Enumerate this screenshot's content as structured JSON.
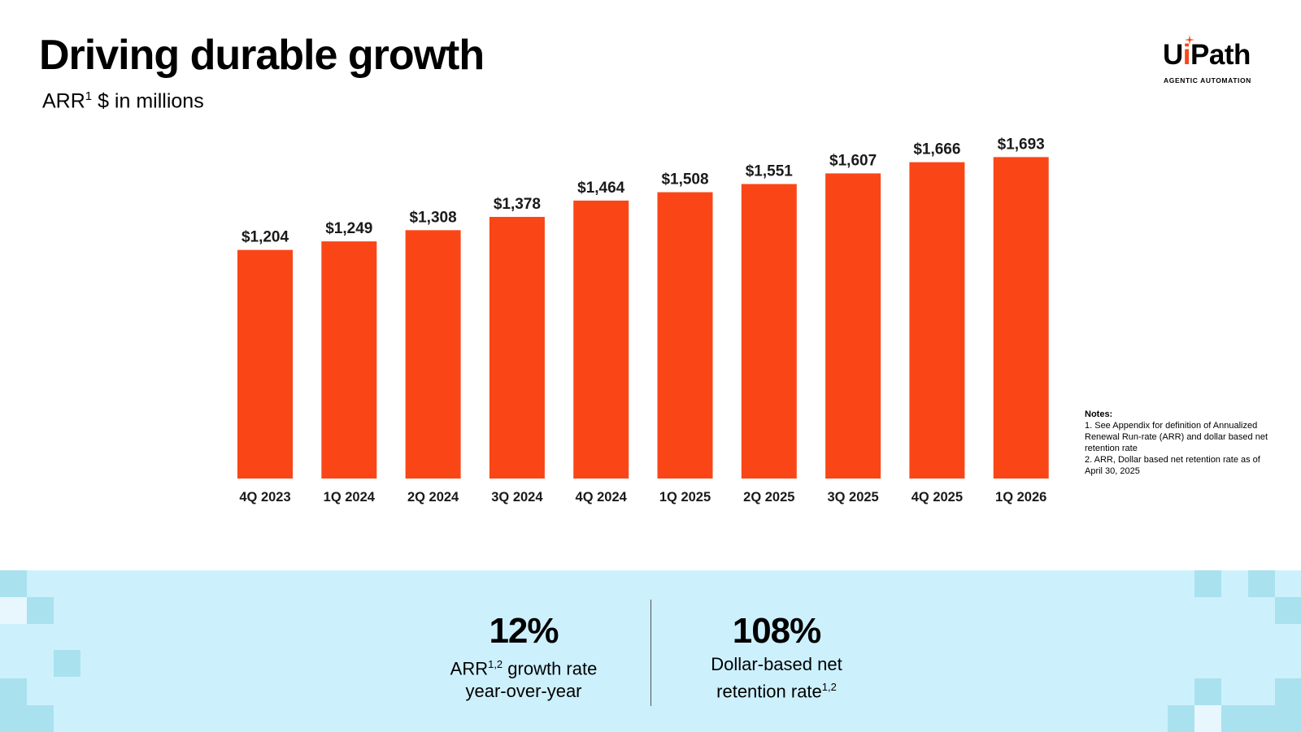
{
  "header": {
    "title": "Driving durable growth",
    "subtitle_prefix": "ARR",
    "subtitle_sup": "1",
    "subtitle_suffix": " $ in millions"
  },
  "logo": {
    "word_pre": "U",
    "word_i": "i",
    "word_post": "Path",
    "tagline": "AGENTIC AUTOMATION",
    "brand_color": "#fa4616"
  },
  "chart_data": {
    "type": "bar",
    "title": "ARR $ in millions",
    "categories": [
      "4Q 2023",
      "1Q 2024",
      "2Q 2024",
      "3Q 2024",
      "4Q 2024",
      "1Q 2025",
      "2Q 2025",
      "3Q 2025",
      "4Q 2025",
      "1Q 2026"
    ],
    "values": [
      1204,
      1249,
      1308,
      1378,
      1464,
      1508,
      1551,
      1607,
      1666,
      1693
    ],
    "data_labels": [
      "$1,204",
      "$1,249",
      "$1,308",
      "$1,378",
      "$1,464",
      "$1,508",
      "$1,551",
      "$1,607",
      "$1,666",
      "$1,693"
    ],
    "xlabel": "",
    "ylabel": "",
    "ylim": [
      0,
      1950
    ],
    "grid": false,
    "bar_color": "#fa4616"
  },
  "notes": {
    "title": "Notes:",
    "items": [
      "1. See Appendix for definition of Annualized Renewal Run-rate (ARR) and dollar based net retention rate",
      "2. ARR, Dollar based net retention rate as of April 30, 2025"
    ]
  },
  "kpis": {
    "growth": {
      "value": "12%",
      "label_prefix": "ARR",
      "label_sup": "1,2",
      "label_rest": " growth rate",
      "label_line2": "year-over-year"
    },
    "retention": {
      "value": "108%",
      "label_line1": "Dollar-based net",
      "label_line2": "retention rate",
      "label_sup": "1,2"
    }
  },
  "colors": {
    "band_background": "#cdf0fd",
    "band_squares": "#a9e1ef"
  }
}
